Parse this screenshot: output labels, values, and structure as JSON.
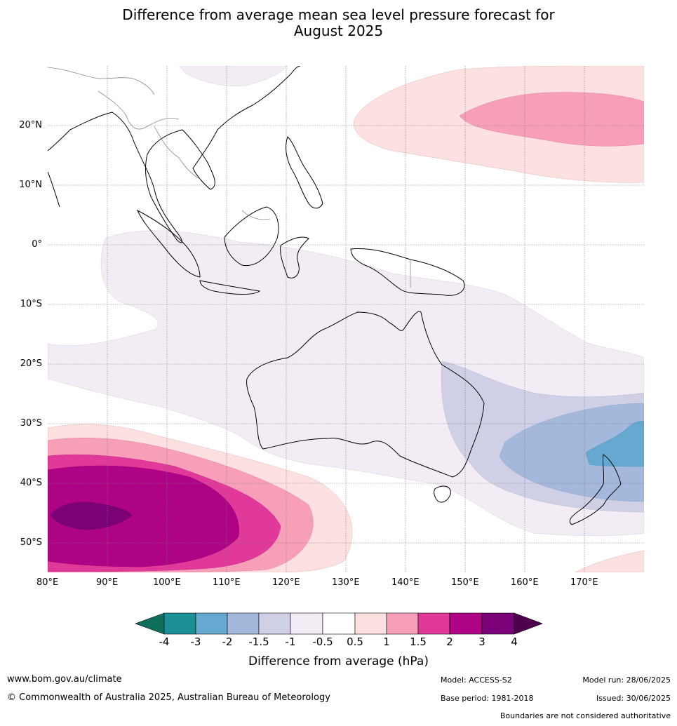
{
  "title_line1": "Difference from average mean sea level pressure forecast for",
  "title_line2": "August 2025",
  "lat_labels": [
    "20°N",
    "10°N",
    "0°",
    "10°S",
    "20°S",
    "30°S",
    "40°S",
    "50°S"
  ],
  "lon_labels": [
    "80°E",
    "90°E",
    "100°E",
    "110°E",
    "120°E",
    "130°E",
    "140°E",
    "150°E",
    "160°E",
    "170°E"
  ],
  "colorbar": {
    "title": "Difference from average (hPa)",
    "ticks": [
      "-4",
      "-3",
      "-2",
      "-1.5",
      "-1",
      "-0.5",
      "0.5",
      "1",
      "1.5",
      "2",
      "3",
      "4"
    ],
    "colors": [
      "#0d6f5c",
      "#1a9096",
      "#65a9d0",
      "#a3b8db",
      "#cfcfe6",
      "#f3ecf5",
      "#ffffff",
      "#fde0e0",
      "#f79fb8",
      "#e0399a",
      "#ad0384",
      "#7a0177",
      "#4d004b"
    ]
  },
  "footer": {
    "website": "www.bom.gov.au/climate",
    "copyright": "© Commonwealth of Australia 2025, Australian Bureau of Meteorology",
    "model": "Model: ACCESS-S2",
    "model_run": "Model run: 28/06/2025",
    "base_period": "Base period: 1981-2018",
    "issued": "Issued: 30/06/2025",
    "disclaimer": "Boundaries are not considered authoritative"
  }
}
